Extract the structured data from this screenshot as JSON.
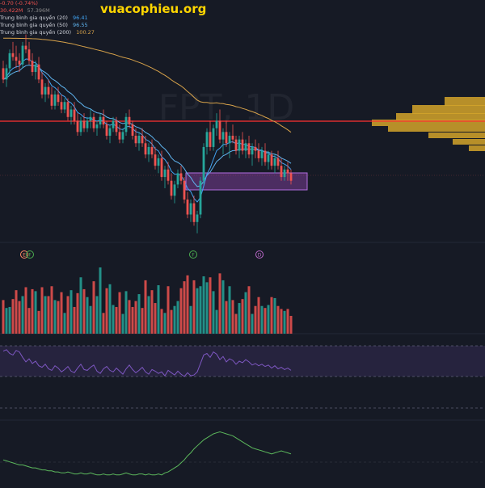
{
  "site": {
    "watermark": "vuacophieu.org"
  },
  "chart": {
    "ticker_watermark": "FPT, 1D",
    "legend": {
      "change_text": "-0.70 (-0.74%)",
      "volume_text": "30.422M",
      "volume_extra": "57.396M",
      "ma20_label": "Trung bình gia quyền (20)",
      "ma20_value": "96.41",
      "ma50_label": "Trung bình gia quyền (50)",
      "ma50_value": "96.55",
      "ma200_label": "Trung bình gia quyền (200)",
      "ma200_value": "100.27"
    },
    "markers": [
      {
        "letter": "E",
        "color": "#ff8a65"
      },
      {
        "letter": "F",
        "color": "#4caf50"
      },
      {
        "letter": "F",
        "color": "#4caf50"
      },
      {
        "letter": "D",
        "color": "#ba68c8"
      }
    ]
  },
  "colors": {
    "background": "#161a25",
    "up": "#26a69a",
    "down": "#ef5350",
    "ma20": "#42a5f5",
    "ma50": "#5fb4ef",
    "ma200": "#d7a24a",
    "resistance": "#ff3030",
    "volume_profile": "#d4a42a",
    "zone": "#8e44ad",
    "rsi": "#7e57c2",
    "macd": "#5cb85c",
    "watermark": "#ffd600"
  },
  "chart_data": {
    "type": "candlestick",
    "candles": [
      [
        102,
        104,
        98,
        99
      ],
      [
        99,
        103,
        97,
        102
      ],
      [
        102,
        107,
        100,
        106
      ],
      [
        106,
        109,
        104,
        105
      ],
      [
        105,
        108,
        102,
        104
      ],
      [
        104,
        106,
        101,
        103
      ],
      [
        103,
        109,
        102,
        108
      ],
      [
        108,
        111,
        106,
        107
      ],
      [
        107,
        109,
        103,
        104
      ],
      [
        104,
        106,
        100,
        101
      ],
      [
        101,
        104,
        99,
        103
      ],
      [
        103,
        105,
        98,
        99
      ],
      [
        99,
        101,
        94,
        95
      ],
      [
        95,
        98,
        93,
        97
      ],
      [
        97,
        99,
        94,
        95
      ],
      [
        95,
        97,
        91,
        92
      ],
      [
        92,
        96,
        91,
        95
      ],
      [
        95,
        97,
        92,
        93
      ],
      [
        93,
        95,
        90,
        91
      ],
      [
        91,
        94,
        90,
        93
      ],
      [
        93,
        94,
        88,
        89
      ],
      [
        89,
        92,
        87,
        91
      ],
      [
        91,
        93,
        87,
        88
      ],
      [
        88,
        90,
        84,
        85
      ],
      [
        85,
        89,
        84,
        88
      ],
      [
        88,
        90,
        85,
        86
      ],
      [
        86,
        89,
        85,
        88
      ],
      [
        88,
        91,
        86,
        89
      ],
      [
        89,
        90,
        85,
        86
      ],
      [
        86,
        88,
        84,
        87
      ],
      [
        87,
        90,
        86,
        89
      ],
      [
        89,
        91,
        86,
        87
      ],
      [
        87,
        88,
        83,
        84
      ],
      [
        84,
        87,
        82,
        86
      ],
      [
        86,
        89,
        85,
        88
      ],
      [
        88,
        89,
        84,
        85
      ],
      [
        85,
        87,
        82,
        83
      ],
      [
        83,
        86,
        82,
        85
      ],
      [
        85,
        90,
        84,
        89
      ],
      [
        89,
        91,
        86,
        87
      ],
      [
        87,
        88,
        83,
        84
      ],
      [
        84,
        86,
        81,
        82
      ],
      [
        82,
        85,
        80,
        84
      ],
      [
        84,
        86,
        81,
        82
      ],
      [
        82,
        84,
        78,
        79
      ],
      [
        79,
        82,
        77,
        81
      ],
      [
        81,
        83,
        78,
        79
      ],
      [
        79,
        81,
        75,
        76
      ],
      [
        76,
        79,
        74,
        78
      ],
      [
        78,
        80,
        72,
        73
      ],
      [
        73,
        76,
        70,
        75
      ],
      [
        75,
        77,
        71,
        72
      ],
      [
        72,
        74,
        67,
        68
      ],
      [
        68,
        72,
        66,
        71
      ],
      [
        71,
        75,
        70,
        74
      ],
      [
        74,
        76,
        71,
        72
      ],
      [
        72,
        73,
        66,
        67
      ],
      [
        67,
        69,
        62,
        63
      ],
      [
        63,
        67,
        61,
        66
      ],
      [
        66,
        68,
        60,
        61
      ],
      [
        61,
        64,
        58,
        63
      ],
      [
        63,
        73,
        62,
        72
      ],
      [
        72,
        82,
        71,
        81
      ],
      [
        81,
        86,
        79,
        85
      ],
      [
        85,
        88,
        80,
        81
      ],
      [
        81,
        87,
        80,
        86
      ],
      [
        86,
        90,
        84,
        88
      ],
      [
        88,
        91,
        82,
        83
      ],
      [
        83,
        86,
        79,
        85
      ],
      [
        85,
        88,
        81,
        82
      ],
      [
        82,
        85,
        78,
        84
      ],
      [
        84,
        87,
        82,
        83
      ],
      [
        83,
        84,
        79,
        80
      ],
      [
        80,
        84,
        78,
        83
      ],
      [
        83,
        85,
        79,
        80
      ],
      [
        80,
        83,
        78,
        82
      ],
      [
        82,
        84,
        78,
        79
      ],
      [
        79,
        82,
        76,
        81
      ],
      [
        81,
        83,
        78,
        80
      ],
      [
        80,
        82,
        77,
        78
      ],
      [
        78,
        81,
        76,
        80
      ],
      [
        80,
        82,
        76,
        77
      ],
      [
        77,
        80,
        75,
        79
      ],
      [
        79,
        80,
        75,
        76
      ],
      [
        76,
        79,
        74,
        78
      ],
      [
        78,
        80,
        75,
        76
      ],
      [
        76,
        78,
        72,
        73
      ],
      [
        73,
        76,
        72,
        75
      ],
      [
        75,
        77,
        72,
        74
      ],
      [
        74,
        75,
        71,
        72
      ]
    ],
    "volumes": [
      34,
      26,
      27,
      35,
      44,
      33,
      38,
      47,
      26,
      45,
      43,
      23,
      47,
      38,
      38,
      48,
      34,
      33,
      42,
      21,
      38,
      44,
      27,
      41,
      57,
      45,
      37,
      28,
      53,
      38,
      67,
      21,
      46,
      50,
      29,
      27,
      42,
      20,
      43,
      34,
      27,
      33,
      40,
      26,
      54,
      38,
      44,
      31,
      49,
      25,
      21,
      48,
      24,
      28,
      33,
      46,
      53,
      59,
      28,
      54,
      46,
      48,
      58,
      52,
      57,
      43,
      24,
      61,
      54,
      33,
      48,
      34,
      20,
      31,
      35,
      42,
      48,
      20,
      28,
      37,
      28,
      26,
      29,
      37,
      36,
      28,
      25,
      23,
      25,
      18
    ],
    "rsi": [
      63,
      65,
      60,
      58,
      64,
      62,
      55,
      49,
      53,
      47,
      50,
      44,
      42,
      46,
      40,
      38,
      44,
      41,
      36,
      39,
      43,
      37,
      35,
      41,
      46,
      39,
      38,
      42,
      45,
      37,
      34,
      40,
      43,
      38,
      36,
      41,
      37,
      33,
      40,
      45,
      39,
      35,
      38,
      42,
      36,
      33,
      39,
      37,
      34,
      36,
      31,
      38,
      35,
      32,
      37,
      33,
      30,
      35,
      31,
      32,
      36,
      47,
      58,
      60,
      55,
      62,
      59,
      52,
      56,
      49,
      53,
      51,
      46,
      50,
      48,
      52,
      49,
      45,
      47,
      44,
      46,
      43,
      45,
      41,
      44,
      40,
      42,
      39,
      41,
      38
    ],
    "macd": [
      20,
      19,
      18,
      17,
      16,
      15,
      15,
      14,
      13,
      12,
      12,
      11,
      10,
      10,
      9,
      9,
      8,
      8,
      7,
      7,
      8,
      7,
      6,
      6,
      7,
      6,
      6,
      7,
      6,
      5,
      5,
      6,
      5,
      5,
      6,
      5,
      5,
      6,
      7,
      6,
      5,
      5,
      6,
      6,
      5,
      6,
      5,
      5,
      6,
      5,
      7,
      8,
      10,
      12,
      14,
      17,
      20,
      24,
      27,
      31,
      34,
      37,
      40,
      42,
      44,
      46,
      47,
      48,
      47,
      46,
      45,
      44,
      42,
      40,
      38,
      36,
      34,
      32,
      31,
      30,
      29,
      28,
      27,
      26,
      27,
      28,
      29,
      28,
      27,
      26
    ]
  }
}
